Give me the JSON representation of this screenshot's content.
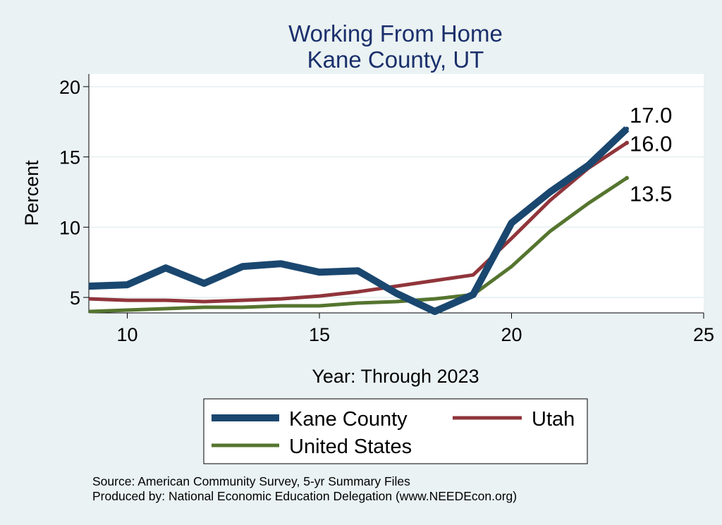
{
  "chart_data": {
    "type": "line",
    "title": [
      "Working From Home",
      "Kane County, UT"
    ],
    "xlabel": "Year: Through 2023",
    "ylabel": "Percent",
    "xlim": [
      9,
      25
    ],
    "ylim": [
      3.9,
      20.9
    ],
    "xticks": [
      10,
      15,
      20,
      25
    ],
    "yticks": [
      5,
      10,
      15,
      20
    ],
    "grid": true,
    "legend_position": "bottom",
    "x": [
      9,
      10,
      11,
      12,
      13,
      14,
      15,
      16,
      17,
      18,
      19,
      20,
      21,
      22,
      23
    ],
    "series": [
      {
        "name": "Kane County",
        "color": "#1a476f",
        "values": [
          5.8,
          5.9,
          7.1,
          6.0,
          7.2,
          7.4,
          6.8,
          6.9,
          5.3,
          4.0,
          5.2,
          10.3,
          12.5,
          14.4,
          17.0
        ],
        "end_label": "17.0"
      },
      {
        "name": "Utah",
        "color": "#90353b",
        "values": [
          4.9,
          4.8,
          4.8,
          4.7,
          4.8,
          4.9,
          5.1,
          5.4,
          5.8,
          6.2,
          6.6,
          9.2,
          11.9,
          14.2,
          16.0
        ],
        "end_label": "16.0"
      },
      {
        "name": "United States",
        "color": "#55752f",
        "values": [
          4.0,
          4.1,
          4.2,
          4.3,
          4.3,
          4.4,
          4.4,
          4.6,
          4.7,
          4.9,
          5.2,
          7.2,
          9.7,
          11.7,
          13.5
        ],
        "end_label": "13.5"
      }
    ],
    "notes": [
      "Source: American Community Survey, 5-yr Summary Files",
      "Produced by: National Economic Education Delegation (www.NEEDEcon.org)"
    ]
  }
}
